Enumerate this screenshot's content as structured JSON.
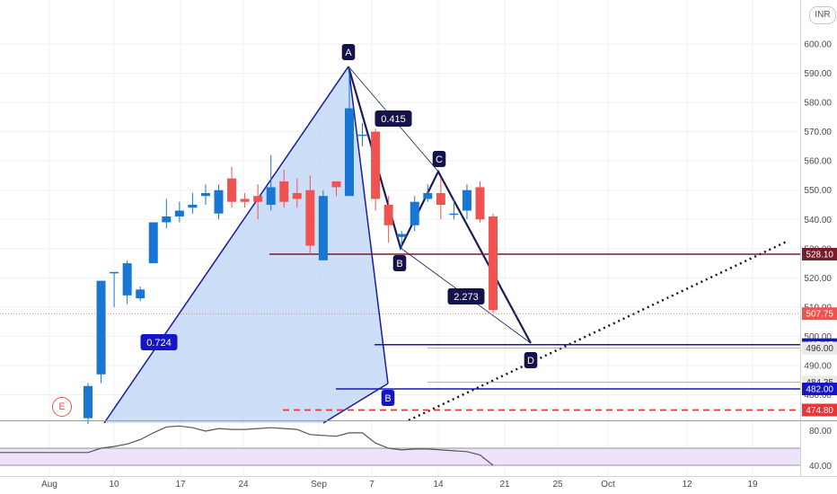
{
  "chart_data": {
    "type": "candlestick",
    "currency": "INR",
    "ylim": [
      470,
      605
    ],
    "y_ticks": [
      480,
      490,
      500,
      510,
      520,
      530,
      540,
      550,
      560,
      570,
      580,
      590,
      600
    ],
    "x_ticks": [
      "Aug",
      "10",
      "17",
      "24",
      "Sep",
      "7",
      "14",
      "21",
      "25",
      "Oct",
      "12",
      "19"
    ],
    "candles": [
      {
        "o": 472,
        "h": 484,
        "l": 470,
        "c": 483
      },
      {
        "o": 487,
        "h": 519,
        "l": 484,
        "c": 519
      },
      {
        "o": 522,
        "h": 522,
        "l": 510,
        "c": 522
      },
      {
        "o": 514,
        "h": 526,
        "l": 511,
        "c": 525
      },
      {
        "o": 513,
        "h": 517,
        "l": 512,
        "c": 516
      },
      {
        "o": 525,
        "h": 539,
        "l": 525,
        "c": 539
      },
      {
        "o": 539,
        "h": 547,
        "l": 537,
        "c": 541
      },
      {
        "o": 541,
        "h": 546,
        "l": 539,
        "c": 543
      },
      {
        "o": 544,
        "h": 549,
        "l": 542,
        "c": 545
      },
      {
        "o": 548,
        "h": 552,
        "l": 545,
        "c": 549
      },
      {
        "o": 542,
        "h": 552,
        "l": 540,
        "c": 550
      },
      {
        "o": 554,
        "h": 558,
        "l": 544,
        "c": 546
      },
      {
        "o": 547,
        "h": 549,
        "l": 544,
        "c": 546
      },
      {
        "o": 548,
        "h": 552,
        "l": 540,
        "c": 546
      },
      {
        "o": 545,
        "h": 562,
        "l": 543,
        "c": 551
      },
      {
        "o": 553,
        "h": 557,
        "l": 544,
        "c": 546
      },
      {
        "o": 549,
        "h": 554,
        "l": 544,
        "c": 547
      },
      {
        "o": 550,
        "h": 555,
        "l": 528,
        "c": 531
      },
      {
        "o": 526,
        "h": 550,
        "l": 526,
        "c": 548
      },
      {
        "o": 553,
        "h": 553,
        "l": 548,
        "c": 551
      },
      {
        "o": 548,
        "h": 592,
        "l": 548,
        "c": 578
      },
      {
        "o": 569,
        "h": 573,
        "l": 565,
        "c": 569
      },
      {
        "o": 570,
        "h": 571,
        "l": 543,
        "c": 547
      },
      {
        "o": 545,
        "h": 548,
        "l": 532,
        "c": 538
      },
      {
        "o": 534,
        "h": 536,
        "l": 530,
        "c": 535
      },
      {
        "o": 538,
        "h": 548,
        "l": 536,
        "c": 546
      },
      {
        "o": 547,
        "h": 552,
        "l": 546,
        "c": 549
      },
      {
        "o": 549,
        "h": 554,
        "l": 540,
        "c": 545
      },
      {
        "o": 542,
        "h": 547,
        "l": 540,
        "c": 542
      },
      {
        "o": 543,
        "h": 552,
        "l": 540,
        "c": 550
      },
      {
        "o": 551,
        "h": 553,
        "l": 539,
        "c": 540
      },
      {
        "o": 541,
        "h": 542,
        "l": 508,
        "c": 509
      }
    ],
    "price_lines": [
      {
        "value": 528.1,
        "label": "528.10",
        "color": "#7a1b2c"
      },
      {
        "value": 507.75,
        "label": "507.75",
        "color": "#ef5350"
      },
      {
        "value": 497.15,
        "label": "497.15",
        "color": "#1414c8"
      },
      {
        "value": 496.0,
        "label": "496.00",
        "color": "#9e9e9e"
      },
      {
        "value": 484.35,
        "label": "484.35",
        "color": "#9e9e9e"
      },
      {
        "value": 482.0,
        "label": "482.00",
        "color": "#1414c8"
      },
      {
        "value": 474.8,
        "label": "474.80",
        "color": "#e53935"
      }
    ],
    "harmonic_pattern": {
      "points": [
        "A",
        "B",
        "C",
        "D"
      ],
      "left_point_label": "B",
      "ratios": [
        "0.724",
        "0.415",
        "2.273"
      ]
    },
    "indicator": {
      "y_ticks": [
        "80.00",
        "40.00"
      ],
      "values": [
        55,
        60,
        62,
        65,
        70,
        78,
        85,
        86,
        84,
        80,
        83,
        82,
        82,
        83,
        84,
        83,
        82,
        76,
        75,
        74,
        78,
        78,
        66,
        60,
        58,
        59,
        59,
        58,
        57,
        56,
        52,
        40
      ]
    }
  },
  "header": {
    "currency_badge": "INR"
  },
  "colors": {
    "up": "#1976d2",
    "down": "#ef5350",
    "pattern": "#1a1aa8",
    "pattern_fill": "#bcd4f5",
    "label_bg": "#14124a",
    "grid": "#eef0f3"
  },
  "event_marker": "E"
}
